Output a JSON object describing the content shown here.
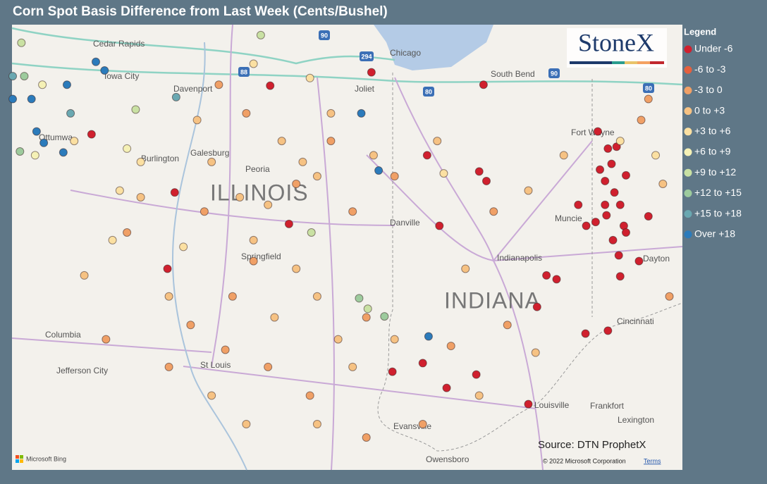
{
  "header": {
    "title": "Corn Spot Basis Difference from Last Week (Cents/Bushel)"
  },
  "legend": {
    "title": "Legend",
    "items": [
      {
        "label": "Under -6",
        "color": "#d0202e"
      },
      {
        "label": "-6 to -3",
        "color": "#e4603e"
      },
      {
        "label": "-3 to 0",
        "color": "#f0a066"
      },
      {
        "label": "0 to +3",
        "color": "#f6c283"
      },
      {
        "label": "+3 to +6",
        "color": "#fbe0a2"
      },
      {
        "label": "+6 to +9",
        "color": "#f5f1b6"
      },
      {
        "label": "+9 to +12",
        "color": "#c9e1a3"
      },
      {
        "label": "+12 to +15",
        "color": "#9dcb9d"
      },
      {
        "label": "+15 to +18",
        "color": "#6aa8b1"
      },
      {
        "label": "Over +18",
        "color": "#2b7bbb"
      }
    ]
  },
  "logo": {
    "text": "StoneX"
  },
  "map": {
    "lon_range": [
      -93.04,
      -83.77
    ],
    "lat_range": [
      37.51,
      42.18
    ],
    "cities": [
      "Cedar Rapids",
      "Iowa City",
      "Davenport",
      "Ottumwa",
      "Burlington",
      "Galesburg",
      "Peoria",
      "ILLINOIS",
      "Springfield",
      "Columbia",
      "Jefferson City",
      "St Louis",
      "Chicago",
      "Joliet",
      "South Bend",
      "Fort Wayne",
      "Muncie",
      "Danville",
      "Indianapolis",
      "INDIANA",
      "Dayton",
      "Cincinnati",
      "Louisville",
      "Frankfort",
      "Lexington",
      "Evansville",
      "Owensboro"
    ],
    "highway_shields": [
      "90",
      "294",
      "88",
      "80",
      "90",
      "80"
    ],
    "points": [
      {
        "lon": -84.94,
        "lat": 41.06,
        "bucket": 0
      },
      {
        "lon": -84.8,
        "lat": 40.88,
        "bucket": 0
      },
      {
        "lon": -84.68,
        "lat": 40.9,
        "bucket": 0
      },
      {
        "lon": -84.91,
        "lat": 40.66,
        "bucket": 0
      },
      {
        "lon": -84.75,
        "lat": 40.72,
        "bucket": 0
      },
      {
        "lon": -84.55,
        "lat": 40.6,
        "bucket": 0
      },
      {
        "lon": -84.84,
        "lat": 40.54,
        "bucket": 0
      },
      {
        "lon": -84.71,
        "lat": 40.42,
        "bucket": 0
      },
      {
        "lon": -84.84,
        "lat": 40.29,
        "bucket": 0
      },
      {
        "lon": -84.63,
        "lat": 40.29,
        "bucket": 0
      },
      {
        "lon": -84.82,
        "lat": 40.18,
        "bucket": 0
      },
      {
        "lon": -84.58,
        "lat": 40.07,
        "bucket": 0
      },
      {
        "lon": -84.97,
        "lat": 40.11,
        "bucket": 0
      },
      {
        "lon": -85.1,
        "lat": 40.07,
        "bucket": 0
      },
      {
        "lon": -84.73,
        "lat": 39.92,
        "bucket": 0
      },
      {
        "lon": -84.55,
        "lat": 40.0,
        "bucket": 0
      },
      {
        "lon": -84.65,
        "lat": 39.76,
        "bucket": 0
      },
      {
        "lon": -84.63,
        "lat": 39.54,
        "bucket": 0
      },
      {
        "lon": -84.37,
        "lat": 39.7,
        "bucket": 0
      },
      {
        "lon": -85.21,
        "lat": 40.29,
        "bucket": 0
      },
      {
        "lon": -85.78,
        "lat": 39.22,
        "bucket": 0
      },
      {
        "lon": -85.51,
        "lat": 39.51,
        "bucket": 0
      },
      {
        "lon": -85.65,
        "lat": 39.55,
        "bucket": 0
      },
      {
        "lon": -86.58,
        "lat": 40.64,
        "bucket": 0
      },
      {
        "lon": -86.48,
        "lat": 40.54,
        "bucket": 0
      },
      {
        "lon": -87.3,
        "lat": 40.81,
        "bucket": 0
      },
      {
        "lon": -87.13,
        "lat": 40.07,
        "bucket": 0
      },
      {
        "lon": -90.79,
        "lat": 40.42,
        "bucket": 0
      },
      {
        "lon": -90.89,
        "lat": 39.62,
        "bucket": 0
      },
      {
        "lon": -91.94,
        "lat": 41.03,
        "bucket": 0
      },
      {
        "lon": -89.47,
        "lat": 41.54,
        "bucket": 0
      },
      {
        "lon": -89.21,
        "lat": 40.09,
        "bucket": 0
      },
      {
        "lon": -88.07,
        "lat": 41.68,
        "bucket": 0
      },
      {
        "lon": -87.78,
        "lat": 38.54,
        "bucket": 0
      },
      {
        "lon": -87.36,
        "lat": 38.63,
        "bucket": 0
      },
      {
        "lon": -87.03,
        "lat": 38.37,
        "bucket": 0
      },
      {
        "lon": -86.62,
        "lat": 38.51,
        "bucket": 0
      },
      {
        "lon": -85.11,
        "lat": 38.94,
        "bucket": 0
      },
      {
        "lon": -84.8,
        "lat": 38.97,
        "bucket": 0
      },
      {
        "lon": -85.9,
        "lat": 38.2,
        "bucket": 0
      },
      {
        "lon": -84.24,
        "lat": 40.17,
        "bucket": 0
      },
      {
        "lon": -86.52,
        "lat": 41.55,
        "bucket": 0
      },
      {
        "lon": -89.7,
        "lat": 39.7,
        "bucket": 2
      },
      {
        "lon": -89.99,
        "lat": 39.33,
        "bucket": 2
      },
      {
        "lon": -90.38,
        "lat": 40.22,
        "bucket": 2
      },
      {
        "lon": -89.11,
        "lat": 40.51,
        "bucket": 2
      },
      {
        "lon": -88.33,
        "lat": 40.22,
        "bucket": 2
      },
      {
        "lon": -90.57,
        "lat": 39.03,
        "bucket": 2
      },
      {
        "lon": -90.09,
        "lat": 38.77,
        "bucket": 2
      },
      {
        "lon": -89.5,
        "lat": 38.59,
        "bucket": 2
      },
      {
        "lon": -88.92,
        "lat": 38.29,
        "bucket": 2
      },
      {
        "lon": -88.14,
        "lat": 39.11,
        "bucket": 2
      },
      {
        "lon": -86.97,
        "lat": 38.81,
        "bucket": 2
      },
      {
        "lon": -86.19,
        "lat": 39.03,
        "bucket": 2
      },
      {
        "lon": -86.38,
        "lat": 40.22,
        "bucket": 2
      },
      {
        "lon": -87.75,
        "lat": 40.59,
        "bucket": 2
      },
      {
        "lon": -88.63,
        "lat": 40.96,
        "bucket": 2
      },
      {
        "lon": -89.8,
        "lat": 41.25,
        "bucket": 2
      },
      {
        "lon": -90.18,
        "lat": 41.55,
        "bucket": 2
      },
      {
        "lon": -91.45,
        "lat": 40.0,
        "bucket": 2
      },
      {
        "lon": -91.74,
        "lat": 38.88,
        "bucket": 2
      },
      {
        "lon": -90.87,
        "lat": 38.59,
        "bucket": 2
      },
      {
        "lon": -87.36,
        "lat": 37.99,
        "bucket": 2
      },
      {
        "lon": -83.95,
        "lat": 39.33,
        "bucket": 2
      },
      {
        "lon": -84.34,
        "lat": 41.18,
        "bucket": 2
      },
      {
        "lon": -84.24,
        "lat": 41.4,
        "bucket": 2
      },
      {
        "lon": -88.14,
        "lat": 37.85,
        "bucket": 2
      },
      {
        "lon": -89.31,
        "lat": 40.96,
        "bucket": 3
      },
      {
        "lon": -89.02,
        "lat": 40.74,
        "bucket": 3
      },
      {
        "lon": -88.82,
        "lat": 40.59,
        "bucket": 3
      },
      {
        "lon": -89.5,
        "lat": 40.29,
        "bucket": 3
      },
      {
        "lon": -89.89,
        "lat": 40.37,
        "bucket": 3
      },
      {
        "lon": -90.28,
        "lat": 40.74,
        "bucket": 3
      },
      {
        "lon": -89.7,
        "lat": 39.92,
        "bucket": 3
      },
      {
        "lon": -89.11,
        "lat": 39.62,
        "bucket": 3
      },
      {
        "lon": -88.82,
        "lat": 39.33,
        "bucket": 3
      },
      {
        "lon": -89.41,
        "lat": 39.11,
        "bucket": 3
      },
      {
        "lon": -88.53,
        "lat": 38.88,
        "bucket": 3
      },
      {
        "lon": -90.28,
        "lat": 38.29,
        "bucket": 3
      },
      {
        "lon": -89.8,
        "lat": 37.99,
        "bucket": 3
      },
      {
        "lon": -88.33,
        "lat": 38.59,
        "bucket": 3
      },
      {
        "lon": -87.75,
        "lat": 38.88,
        "bucket": 3
      },
      {
        "lon": -86.77,
        "lat": 39.62,
        "bucket": 3
      },
      {
        "lon": -85.9,
        "lat": 40.44,
        "bucket": 3
      },
      {
        "lon": -85.41,
        "lat": 40.81,
        "bucket": 3
      },
      {
        "lon": -87.16,
        "lat": 40.96,
        "bucket": 3
      },
      {
        "lon": -91.26,
        "lat": 40.37,
        "bucket": 3
      },
      {
        "lon": -90.87,
        "lat": 39.33,
        "bucket": 3
      },
      {
        "lon": -92.04,
        "lat": 39.55,
        "bucket": 3
      },
      {
        "lon": -88.82,
        "lat": 37.99,
        "bucket": 3
      },
      {
        "lon": -86.58,
        "lat": 38.29,
        "bucket": 3
      },
      {
        "lon": -84.04,
        "lat": 40.51,
        "bucket": 3
      },
      {
        "lon": -85.8,
        "lat": 38.74,
        "bucket": 3
      },
      {
        "lon": -88.63,
        "lat": 41.25,
        "bucket": 3
      },
      {
        "lon": -88.04,
        "lat": 40.81,
        "bucket": 3
      },
      {
        "lon": -90.48,
        "lat": 41.18,
        "bucket": 3
      },
      {
        "lon": -91.26,
        "lat": 40.74,
        "bucket": 4
      },
      {
        "lon": -91.55,
        "lat": 40.44,
        "bucket": 4
      },
      {
        "lon": -90.67,
        "lat": 39.85,
        "bucket": 4
      },
      {
        "lon": -87.07,
        "lat": 40.62,
        "bucket": 4
      },
      {
        "lon": -84.63,
        "lat": 40.96,
        "bucket": 4
      },
      {
        "lon": -84.14,
        "lat": 40.81,
        "bucket": 4
      },
      {
        "lon": -91.65,
        "lat": 39.92,
        "bucket": 4
      },
      {
        "lon": -92.18,
        "lat": 40.96,
        "bucket": 4
      },
      {
        "lon": -88.92,
        "lat": 41.62,
        "bucket": 4
      },
      {
        "lon": -89.7,
        "lat": 41.77,
        "bucket": 4
      },
      {
        "lon": -92.62,
        "lat": 41.55,
        "bucket": 5
      },
      {
        "lon": -92.72,
        "lat": 40.81,
        "bucket": 5
      },
      {
        "lon": -91.45,
        "lat": 40.88,
        "bucket": 5
      },
      {
        "lon": -91.33,
        "lat": 41.29,
        "bucket": 6
      },
      {
        "lon": -88.9,
        "lat": 40.0,
        "bucket": 6
      },
      {
        "lon": -88.12,
        "lat": 39.2,
        "bucket": 6
      },
      {
        "lon": -89.6,
        "lat": 42.07,
        "bucket": 6
      },
      {
        "lon": -92.91,
        "lat": 41.99,
        "bucket": 6
      },
      {
        "lon": -87.89,
        "lat": 39.12,
        "bucket": 7
      },
      {
        "lon": -88.24,
        "lat": 39.31,
        "bucket": 7
      },
      {
        "lon": -92.93,
        "lat": 40.85,
        "bucket": 7
      },
      {
        "lon": -92.87,
        "lat": 41.64,
        "bucket": 7
      },
      {
        "lon": -92.23,
        "lat": 41.25,
        "bucket": 8
      },
      {
        "lon": -90.77,
        "lat": 41.42,
        "bucket": 8
      },
      {
        "lon": -93.03,
        "lat": 41.64,
        "bucket": 8
      },
      {
        "lon": -91.88,
        "lat": 41.79,
        "bucket": 9
      },
      {
        "lon": -91.76,
        "lat": 41.7,
        "bucket": 9
      },
      {
        "lon": -92.77,
        "lat": 41.4,
        "bucket": 9
      },
      {
        "lon": -92.7,
        "lat": 41.06,
        "bucket": 9
      },
      {
        "lon": -92.6,
        "lat": 40.94,
        "bucket": 9
      },
      {
        "lon": -92.33,
        "lat": 40.84,
        "bucket": 9
      },
      {
        "lon": -92.28,
        "lat": 41.55,
        "bucket": 9
      },
      {
        "lon": -88.21,
        "lat": 41.25,
        "bucket": 9
      },
      {
        "lon": -87.97,
        "lat": 40.65,
        "bucket": 9
      },
      {
        "lon": -87.28,
        "lat": 38.91,
        "bucket": 9
      },
      {
        "lon": -93.03,
        "lat": 41.4,
        "bucket": 9
      }
    ]
  },
  "footer": {
    "source": "Source: DTN ProphetX",
    "bing": "Microsoft Bing",
    "copyright": "© 2022 Microsoft Corporation",
    "terms": "Terms"
  }
}
